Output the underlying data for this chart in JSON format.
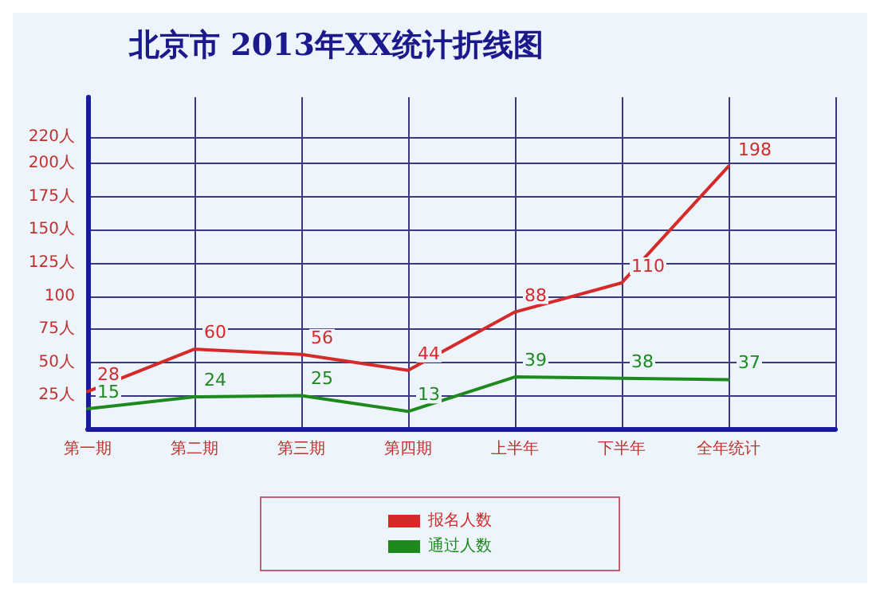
{
  "chart_data": {
    "type": "line",
    "title": "北京市 2013年XX统计折线图",
    "categories": [
      "第一期",
      "第二期",
      "第三期",
      "第四期",
      "上半年",
      "下半年",
      "全年统计",
      null
    ],
    "series": [
      {
        "name": "报名人数",
        "color": "#d42a2a",
        "values": [
          28,
          60,
          56,
          44,
          88,
          110,
          198,
          null
        ]
      },
      {
        "name": "通过人数",
        "color": "#1e8a1e",
        "values": [
          15,
          24,
          25,
          13,
          39,
          38,
          37,
          null
        ]
      }
    ],
    "ylim": [
      0,
      250
    ],
    "yticks": [
      {
        "value": 25,
        "label": "25人"
      },
      {
        "value": 50,
        "label": "50人"
      },
      {
        "value": 75,
        "label": "75人"
      },
      100,
      {
        "value": 125,
        "label": "125人"
      },
      {
        "value": 150,
        "label": "150人"
      },
      {
        "value": 175,
        "label": "175人"
      },
      {
        "value": 200,
        "label": "200人"
      },
      {
        "value": 220,
        "label": "220人"
      }
    ],
    "grid": true,
    "legend": "bottom",
    "data_labels": true,
    "marker": "none",
    "line_style": "solid"
  }
}
